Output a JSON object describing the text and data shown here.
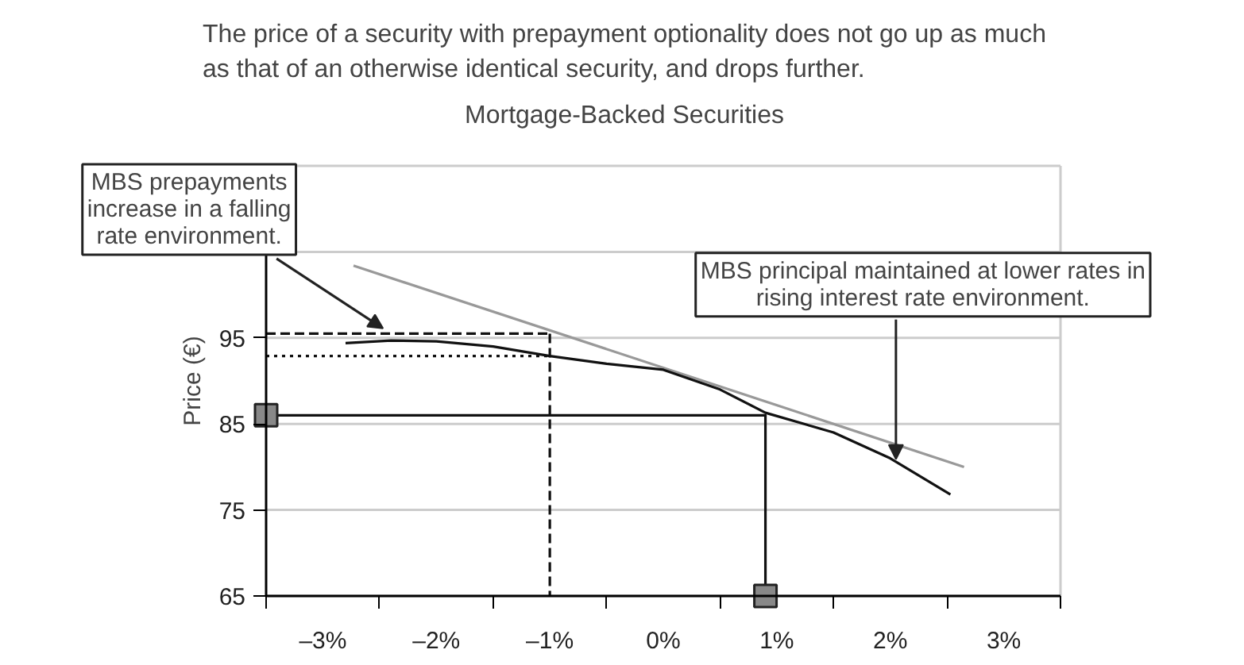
{
  "chart_data": {
    "type": "line",
    "title": "The price of a security with prepayment optionality does not go up as much\nas that of an otherwise identical security, and drops further.",
    "subtitle": "Mortgage-Backed Securities",
    "ylabel": "Price (€)",
    "xlim": [
      -3.5,
      3.5
    ],
    "xticks": [
      {
        "value": -3.5,
        "label": null
      },
      {
        "value": -3,
        "label": "–3%"
      },
      {
        "value": -2.5,
        "label": null
      },
      {
        "value": -2,
        "label": "–2%"
      },
      {
        "value": -1.5,
        "label": null
      },
      {
        "value": -1,
        "label": "–1%"
      },
      {
        "value": -0.5,
        "label": null
      },
      {
        "value": 0,
        "label": "0%"
      },
      {
        "value": 0.5,
        "label": null
      },
      {
        "value": 1,
        "label": "1%"
      },
      {
        "value": 1.5,
        "label": null
      },
      {
        "value": 2,
        "label": "2%"
      },
      {
        "value": 2.5,
        "label": null
      },
      {
        "value": 3,
        "label": "3%"
      },
      {
        "value": 3.5,
        "label": null
      }
    ],
    "ylim": [
      65,
      115
    ],
    "yticks": [
      65,
      75,
      85,
      95,
      {
        "value": 105,
        "label": null
      },
      {
        "value": 115,
        "label": null
      }
    ],
    "grid": "y",
    "series": [
      {
        "type": "line",
        "color": "#999999",
        "line_style": "solid",
        "x": [
          -2.73,
          2.65
        ],
        "values": [
          103.4,
          80.0
        ]
      },
      {
        "type": "line",
        "color": "#111111",
        "line_style": "solid",
        "x": [
          -2.8,
          -2.4,
          -2.0,
          -1.5,
          -1.0,
          -0.5,
          0.0,
          0.5,
          0.9,
          1.5,
          2.0,
          2.53
        ],
        "values": [
          94.4,
          94.7,
          94.6,
          94.0,
          92.9,
          92.0,
          91.3,
          89.0,
          86.3,
          84.0,
          81.0,
          76.8
        ]
      },
      {
        "type": "line",
        "color": "#111111",
        "line_style": "dashed",
        "x": [
          -3.5,
          -1.0
        ],
        "values": [
          95.5,
          95.5
        ]
      },
      {
        "type": "line",
        "color": "#111111",
        "line_style": "dashed",
        "x": [
          -1.0,
          -1.0
        ],
        "values": [
          95.5,
          65
        ]
      },
      {
        "type": "line",
        "color": "#111111",
        "line_style": "dotted",
        "x": [
          -3.5,
          -1.0
        ],
        "values": [
          92.9,
          92.9
        ]
      },
      {
        "type": "line",
        "color": "#111111",
        "line_style": "solid",
        "x": [
          -3.5,
          0.9,
          0.9
        ],
        "values": [
          86,
          86,
          65
        ]
      },
      {
        "type": "scatter",
        "color": "#888888",
        "marker": "square",
        "x": [
          -3.5,
          0.9
        ],
        "values": [
          86,
          65
        ]
      }
    ],
    "annotations": [
      {
        "text": "MBS prepayments\nincrease in a falling\nrate environment.",
        "x": -2.47,
        "y": 96.1
      },
      {
        "text": "MBS principal maintained at lower rates in\nrising interest rate environment.",
        "x": 2.05,
        "y": 80.9
      }
    ]
  }
}
